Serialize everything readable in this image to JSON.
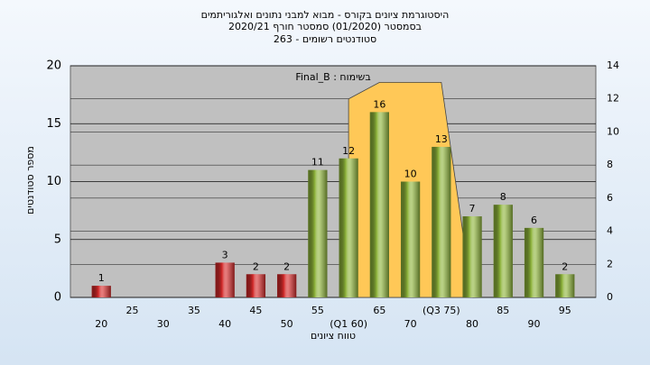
{
  "chart_data": {
    "type": "bar",
    "title": "היסטוגרמת ציונים בקורס - מבוא למבני נתונים ואלגוריתמים",
    "subtitle": "בסמסטר  (01/2020)  סמסטר חורף 2020/21",
    "subtitle2": "סטודנטים רשומים - 263",
    "annotation": "בשימוח : Final_B",
    "xlabel": "טווח ציונים",
    "ylabel": "מספר סטודנטים",
    "categories": [
      "20",
      "25",
      "30",
      "35",
      "40",
      "45",
      "50",
      "55",
      "(Q1 60)",
      "65",
      "70",
      "(Q3 75)",
      "80",
      "85",
      "90",
      "95"
    ],
    "values": [
      1,
      0,
      0,
      0,
      3,
      2,
      2,
      11,
      12,
      16,
      10,
      13,
      7,
      8,
      6,
      2
    ],
    "value_labels": [
      "1",
      null,
      null,
      null,
      "3",
      "2",
      "2",
      "11",
      "12",
      "16",
      "10",
      "13",
      "7",
      "8",
      "6",
      "2"
    ],
    "colors": [
      "#d42a2a",
      "#d42a2a",
      "#d42a2a",
      "#d42a2a",
      "#d42a2a",
      "#d42a2a",
      "#d42a2a",
      "#8db33a",
      "#8db33a",
      "#8db33a",
      "#8db33a",
      "#8db33a",
      "#8db33a",
      "#8db33a",
      "#8db33a",
      "#8db33a"
    ],
    "area": {
      "axis": "y2",
      "color": "#ffc857",
      "values": [
        null,
        null,
        null,
        null,
        null,
        null,
        null,
        null,
        12,
        13,
        13,
        13,
        0,
        null,
        null,
        null
      ]
    },
    "ylim": [
      0,
      20
    ],
    "yticks": [
      0,
      5,
      10,
      15,
      20
    ],
    "y2lim": [
      0,
      14
    ],
    "y2ticks": [
      0,
      2,
      4,
      6,
      8,
      10,
      12,
      14
    ],
    "grid": true
  }
}
